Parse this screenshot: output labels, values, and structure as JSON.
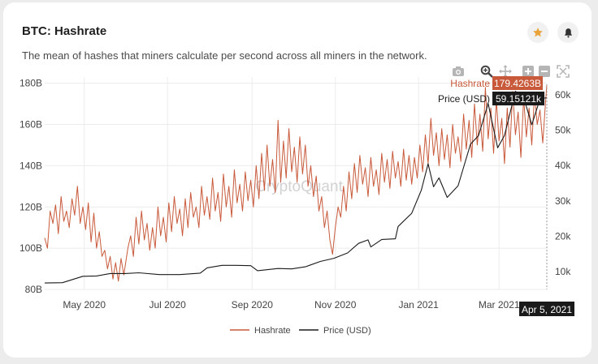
{
  "card": {
    "title": "BTC: Hashrate",
    "subtitle": "The mean of hashes that miners calculate per second across all miners in the network."
  },
  "watermark": "CryptoQuant",
  "colors": {
    "hashrate": "#c8593a",
    "price": "#1a1a1a",
    "grid": "#ececec",
    "axis_text": "#444444"
  },
  "icons": {
    "favorite": "star-icon",
    "notify": "bell-icon",
    "toolbar": [
      "camera-icon",
      "zoom-icon",
      "pan-icon",
      "zoom-in-icon",
      "zoom-out-icon",
      "autoscale-icon"
    ]
  },
  "hover": {
    "hashrate_label": "Hashrate",
    "hashrate_value": "179.4263B",
    "price_label": "Price (USD)",
    "price_value": "59.15121k",
    "date": "Apr 5, 2021"
  },
  "chart_data": {
    "type": "line",
    "title": "BTC: Hashrate",
    "x_range": [
      "2020-04-02",
      "2021-04-05"
    ],
    "x_ticks": [
      {
        "date": "2020-05-01",
        "label": "May 2020"
      },
      {
        "date": "2020-07-01",
        "label": "Jul 2020"
      },
      {
        "date": "2020-09-01",
        "label": "Sep 2020"
      },
      {
        "date": "2020-11-01",
        "label": "Nov 2020"
      },
      {
        "date": "2021-01-01",
        "label": "Jan 2021"
      },
      {
        "date": "2021-03-01",
        "label": "Mar 2021"
      }
    ],
    "y_left": {
      "range": [
        80,
        183
      ],
      "ticks": [
        {
          "v": 80,
          "label": "80B"
        },
        {
          "v": 100,
          "label": "100B"
        },
        {
          "v": 120,
          "label": "120B"
        },
        {
          "v": 140,
          "label": "140B"
        },
        {
          "v": 160,
          "label": "160B"
        },
        {
          "v": 180,
          "label": "180B"
        }
      ]
    },
    "y_right": {
      "range": [
        5000,
        65000
      ],
      "ticks": [
        {
          "v": 10000,
          "label": "10k"
        },
        {
          "v": 20000,
          "label": "20k"
        },
        {
          "v": 30000,
          "label": "30k"
        },
        {
          "v": 40000,
          "label": "40k"
        },
        {
          "v": 50000,
          "label": "50k"
        },
        {
          "v": 60000,
          "label": "60k"
        }
      ]
    },
    "grid": true,
    "legend_position": "bottom-center",
    "series": [
      {
        "name": "Hashrate",
        "axis": "left",
        "unit": "B",
        "points": [
          [
            "2020-04-02",
            105
          ],
          [
            "2020-04-04",
            100
          ],
          [
            "2020-04-06",
            118
          ],
          [
            "2020-04-08",
            112
          ],
          [
            "2020-04-10",
            121
          ],
          [
            "2020-04-12",
            107
          ],
          [
            "2020-04-14",
            125
          ],
          [
            "2020-04-16",
            113
          ],
          [
            "2020-04-18",
            118
          ],
          [
            "2020-04-20",
            110
          ],
          [
            "2020-04-22",
            124
          ],
          [
            "2020-04-24",
            116
          ],
          [
            "2020-04-26",
            130
          ],
          [
            "2020-04-28",
            112
          ],
          [
            "2020-04-30",
            120
          ],
          [
            "2020-05-02",
            109
          ],
          [
            "2020-05-04",
            122
          ],
          [
            "2020-05-06",
            103
          ],
          [
            "2020-05-08",
            117
          ],
          [
            "2020-05-10",
            100
          ],
          [
            "2020-05-12",
            108
          ],
          [
            "2020-05-14",
            96
          ],
          [
            "2020-05-16",
            99
          ],
          [
            "2020-05-18",
            90
          ],
          [
            "2020-05-20",
            96
          ],
          [
            "2020-05-22",
            85
          ],
          [
            "2020-05-24",
            93
          ],
          [
            "2020-05-26",
            84
          ],
          [
            "2020-05-28",
            95
          ],
          [
            "2020-05-30",
            87
          ],
          [
            "2020-06-02",
            100
          ],
          [
            "2020-06-04",
            106
          ],
          [
            "2020-06-06",
            96
          ],
          [
            "2020-06-08",
            115
          ],
          [
            "2020-06-10",
            102
          ],
          [
            "2020-06-12",
            118
          ],
          [
            "2020-06-14",
            104
          ],
          [
            "2020-06-16",
            112
          ],
          [
            "2020-06-18",
            99
          ],
          [
            "2020-06-20",
            110
          ],
          [
            "2020-06-22",
            100
          ],
          [
            "2020-06-24",
            120
          ],
          [
            "2020-06-26",
            106
          ],
          [
            "2020-06-28",
            115
          ],
          [
            "2020-06-30",
            103
          ],
          [
            "2020-07-02",
            122
          ],
          [
            "2020-07-04",
            108
          ],
          [
            "2020-07-06",
            125
          ],
          [
            "2020-07-08",
            112
          ],
          [
            "2020-07-10",
            119
          ],
          [
            "2020-07-12",
            106
          ],
          [
            "2020-07-14",
            124
          ],
          [
            "2020-07-16",
            110
          ],
          [
            "2020-07-18",
            127
          ],
          [
            "2020-07-20",
            115
          ],
          [
            "2020-07-22",
            120
          ],
          [
            "2020-07-24",
            110
          ],
          [
            "2020-07-26",
            130
          ],
          [
            "2020-07-28",
            116
          ],
          [
            "2020-07-30",
            125
          ],
          [
            "2020-08-01",
            114
          ],
          [
            "2020-08-03",
            134
          ],
          [
            "2020-08-05",
            118
          ],
          [
            "2020-08-07",
            127
          ],
          [
            "2020-08-09",
            113
          ],
          [
            "2020-08-11",
            136
          ],
          [
            "2020-08-13",
            120
          ],
          [
            "2020-08-15",
            130
          ],
          [
            "2020-08-17",
            115
          ],
          [
            "2020-08-19",
            138
          ],
          [
            "2020-08-21",
            122
          ],
          [
            "2020-08-23",
            131
          ],
          [
            "2020-08-25",
            118
          ],
          [
            "2020-08-27",
            137
          ],
          [
            "2020-08-29",
            123
          ],
          [
            "2020-08-31",
            133
          ],
          [
            "2020-09-02",
            120
          ],
          [
            "2020-09-04",
            140
          ],
          [
            "2020-09-06",
            124
          ],
          [
            "2020-09-08",
            146
          ],
          [
            "2020-09-10",
            128
          ],
          [
            "2020-09-12",
            150
          ],
          [
            "2020-09-14",
            130
          ],
          [
            "2020-09-16",
            143
          ],
          [
            "2020-09-18",
            127
          ],
          [
            "2020-09-20",
            162
          ],
          [
            "2020-09-22",
            132
          ],
          [
            "2020-09-24",
            152
          ],
          [
            "2020-09-26",
            134
          ],
          [
            "2020-09-28",
            158
          ],
          [
            "2020-09-30",
            137
          ],
          [
            "2020-10-02",
            149
          ],
          [
            "2020-10-04",
            132
          ],
          [
            "2020-10-06",
            154
          ],
          [
            "2020-10-08",
            136
          ],
          [
            "2020-10-10",
            150
          ],
          [
            "2020-10-12",
            130
          ],
          [
            "2020-10-14",
            140
          ],
          [
            "2020-10-16",
            125
          ],
          [
            "2020-10-18",
            135
          ],
          [
            "2020-10-20",
            118
          ],
          [
            "2020-10-22",
            125
          ],
          [
            "2020-10-24",
            110
          ],
          [
            "2020-10-26",
            118
          ],
          [
            "2020-10-28",
            104
          ],
          [
            "2020-10-30",
            97
          ],
          [
            "2020-11-01",
            110
          ],
          [
            "2020-11-03",
            120
          ],
          [
            "2020-11-05",
            115
          ],
          [
            "2020-11-07",
            130
          ],
          [
            "2020-11-09",
            118
          ],
          [
            "2020-11-11",
            137
          ],
          [
            "2020-11-13",
            124
          ],
          [
            "2020-11-15",
            141
          ],
          [
            "2020-11-17",
            127
          ],
          [
            "2020-11-19",
            145
          ],
          [
            "2020-11-21",
            131
          ],
          [
            "2020-11-23",
            139
          ],
          [
            "2020-11-25",
            125
          ],
          [
            "2020-11-27",
            144
          ],
          [
            "2020-11-29",
            130
          ],
          [
            "2020-12-01",
            138
          ],
          [
            "2020-12-03",
            126
          ],
          [
            "2020-12-05",
            146
          ],
          [
            "2020-12-07",
            132
          ],
          [
            "2020-12-09",
            143
          ],
          [
            "2020-12-11",
            129
          ],
          [
            "2020-12-13",
            147
          ],
          [
            "2020-12-15",
            134
          ],
          [
            "2020-12-17",
            142
          ],
          [
            "2020-12-19",
            130
          ],
          [
            "2020-12-21",
            148
          ],
          [
            "2020-12-23",
            133
          ],
          [
            "2020-12-25",
            145
          ],
          [
            "2020-12-27",
            131
          ],
          [
            "2020-12-29",
            144
          ],
          [
            "2020-12-31",
            134
          ],
          [
            "2021-01-02",
            150
          ],
          [
            "2021-01-04",
            137
          ],
          [
            "2021-01-06",
            155
          ],
          [
            "2021-01-08",
            141
          ],
          [
            "2021-01-10",
            163
          ],
          [
            "2021-01-12",
            145
          ],
          [
            "2021-01-14",
            156
          ],
          [
            "2021-01-16",
            140
          ],
          [
            "2021-01-18",
            158
          ],
          [
            "2021-01-20",
            143
          ],
          [
            "2021-01-22",
            155
          ],
          [
            "2021-01-24",
            139
          ],
          [
            "2021-01-26",
            160
          ],
          [
            "2021-01-28",
            146
          ],
          [
            "2021-01-30",
            154
          ],
          [
            "2021-02-01",
            142
          ],
          [
            "2021-02-03",
            165
          ],
          [
            "2021-02-05",
            148
          ],
          [
            "2021-02-07",
            162
          ],
          [
            "2021-02-09",
            144
          ],
          [
            "2021-02-11",
            170
          ],
          [
            "2021-02-13",
            150
          ],
          [
            "2021-02-15",
            165
          ],
          [
            "2021-02-17",
            147
          ],
          [
            "2021-02-19",
            178
          ],
          [
            "2021-02-21",
            153
          ],
          [
            "2021-02-23",
            168
          ],
          [
            "2021-02-25",
            146
          ],
          [
            "2021-02-27",
            172
          ],
          [
            "2021-03-01",
            152
          ],
          [
            "2021-03-03",
            163
          ],
          [
            "2021-03-05",
            141
          ],
          [
            "2021-03-07",
            168
          ],
          [
            "2021-03-09",
            149
          ],
          [
            "2021-03-11",
            176
          ],
          [
            "2021-03-13",
            155
          ],
          [
            "2021-03-15",
            166
          ],
          [
            "2021-03-17",
            144
          ],
          [
            "2021-03-19",
            173
          ],
          [
            "2021-03-21",
            154
          ],
          [
            "2021-03-23",
            168
          ],
          [
            "2021-03-25",
            150
          ],
          [
            "2021-03-27",
            175
          ],
          [
            "2021-03-29",
            160
          ],
          [
            "2021-03-31",
            167
          ],
          [
            "2021-04-02",
            151
          ],
          [
            "2021-04-04",
            170
          ],
          [
            "2021-04-05",
            179.4263
          ]
        ]
      },
      {
        "name": "Price (USD)",
        "axis": "right",
        "unit": "USD",
        "points": [
          [
            "2020-04-02",
            6800
          ],
          [
            "2020-04-15",
            6900
          ],
          [
            "2020-04-30",
            8700
          ],
          [
            "2020-05-10",
            8800
          ],
          [
            "2020-05-20",
            9500
          ],
          [
            "2020-05-31",
            9500
          ],
          [
            "2020-06-10",
            9700
          ],
          [
            "2020-06-25",
            9200
          ],
          [
            "2020-07-10",
            9200
          ],
          [
            "2020-07-25",
            9600
          ],
          [
            "2020-07-30",
            11100
          ],
          [
            "2020-08-10",
            11800
          ],
          [
            "2020-08-20",
            11800
          ],
          [
            "2020-08-31",
            11700
          ],
          [
            "2020-09-05",
            10300
          ],
          [
            "2020-09-20",
            10900
          ],
          [
            "2020-09-30",
            10800
          ],
          [
            "2020-10-10",
            11400
          ],
          [
            "2020-10-21",
            12900
          ],
          [
            "2020-10-31",
            13800
          ],
          [
            "2020-11-10",
            15300
          ],
          [
            "2020-11-18",
            18000
          ],
          [
            "2020-11-25",
            19000
          ],
          [
            "2020-11-27",
            17000
          ],
          [
            "2020-12-05",
            19100
          ],
          [
            "2020-12-15",
            19300
          ],
          [
            "2020-12-17",
            22800
          ],
          [
            "2020-12-27",
            26500
          ],
          [
            "2021-01-03",
            33000
          ],
          [
            "2021-01-08",
            40500
          ],
          [
            "2021-01-12",
            34000
          ],
          [
            "2021-01-16",
            36500
          ],
          [
            "2021-01-22",
            31000
          ],
          [
            "2021-01-30",
            34300
          ],
          [
            "2021-02-08",
            46000
          ],
          [
            "2021-02-14",
            48500
          ],
          [
            "2021-02-21",
            57500
          ],
          [
            "2021-02-28",
            45000
          ],
          [
            "2021-03-05",
            48500
          ],
          [
            "2021-03-13",
            61000
          ],
          [
            "2021-03-20",
            58000
          ],
          [
            "2021-03-25",
            51500
          ],
          [
            "2021-03-31",
            58800
          ],
          [
            "2021-04-05",
            59151.21
          ]
        ]
      }
    ]
  }
}
